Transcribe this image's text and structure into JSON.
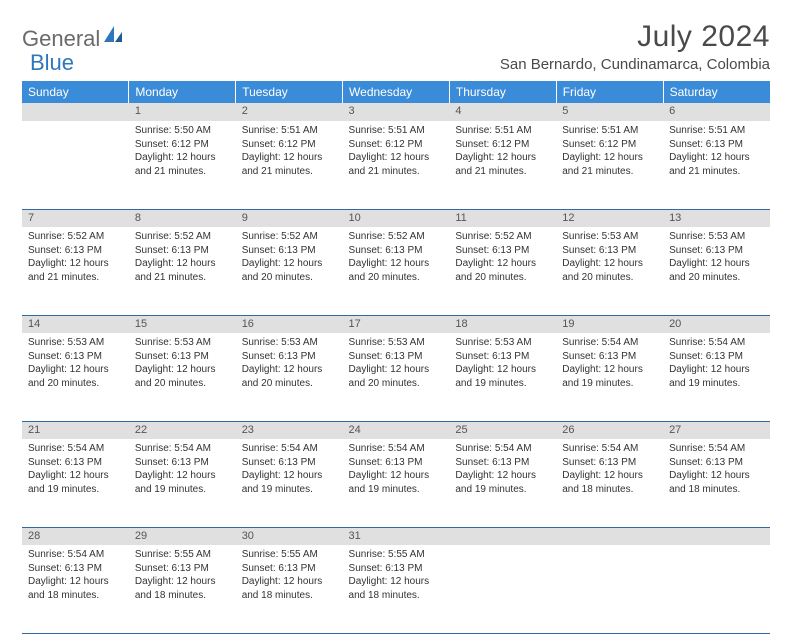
{
  "logo": {
    "general": "General",
    "blue": "Blue"
  },
  "title": "July 2024",
  "location": "San Bernardo, Cundinamarca, Colombia",
  "colors": {
    "header_bg": "#3a8bd8",
    "header_text": "#ffffff",
    "daynum_bg": "#e0e0e0",
    "border": "#2f6aa5",
    "text": "#333333",
    "logo_gray": "#6a6a6a",
    "logo_blue": "#2f77bc"
  },
  "day_headers": [
    "Sunday",
    "Monday",
    "Tuesday",
    "Wednesday",
    "Thursday",
    "Friday",
    "Saturday"
  ],
  "weeks": [
    [
      {
        "num": "",
        "sunrise": "",
        "sunset": "",
        "daylight": ""
      },
      {
        "num": "1",
        "sunrise": "Sunrise: 5:50 AM",
        "sunset": "Sunset: 6:12 PM",
        "daylight": "Daylight: 12 hours and 21 minutes."
      },
      {
        "num": "2",
        "sunrise": "Sunrise: 5:51 AM",
        "sunset": "Sunset: 6:12 PM",
        "daylight": "Daylight: 12 hours and 21 minutes."
      },
      {
        "num": "3",
        "sunrise": "Sunrise: 5:51 AM",
        "sunset": "Sunset: 6:12 PM",
        "daylight": "Daylight: 12 hours and 21 minutes."
      },
      {
        "num": "4",
        "sunrise": "Sunrise: 5:51 AM",
        "sunset": "Sunset: 6:12 PM",
        "daylight": "Daylight: 12 hours and 21 minutes."
      },
      {
        "num": "5",
        "sunrise": "Sunrise: 5:51 AM",
        "sunset": "Sunset: 6:12 PM",
        "daylight": "Daylight: 12 hours and 21 minutes."
      },
      {
        "num": "6",
        "sunrise": "Sunrise: 5:51 AM",
        "sunset": "Sunset: 6:13 PM",
        "daylight": "Daylight: 12 hours and 21 minutes."
      }
    ],
    [
      {
        "num": "7",
        "sunrise": "Sunrise: 5:52 AM",
        "sunset": "Sunset: 6:13 PM",
        "daylight": "Daylight: 12 hours and 21 minutes."
      },
      {
        "num": "8",
        "sunrise": "Sunrise: 5:52 AM",
        "sunset": "Sunset: 6:13 PM",
        "daylight": "Daylight: 12 hours and 21 minutes."
      },
      {
        "num": "9",
        "sunrise": "Sunrise: 5:52 AM",
        "sunset": "Sunset: 6:13 PM",
        "daylight": "Daylight: 12 hours and 20 minutes."
      },
      {
        "num": "10",
        "sunrise": "Sunrise: 5:52 AM",
        "sunset": "Sunset: 6:13 PM",
        "daylight": "Daylight: 12 hours and 20 minutes."
      },
      {
        "num": "11",
        "sunrise": "Sunrise: 5:52 AM",
        "sunset": "Sunset: 6:13 PM",
        "daylight": "Daylight: 12 hours and 20 minutes."
      },
      {
        "num": "12",
        "sunrise": "Sunrise: 5:53 AM",
        "sunset": "Sunset: 6:13 PM",
        "daylight": "Daylight: 12 hours and 20 minutes."
      },
      {
        "num": "13",
        "sunrise": "Sunrise: 5:53 AM",
        "sunset": "Sunset: 6:13 PM",
        "daylight": "Daylight: 12 hours and 20 minutes."
      }
    ],
    [
      {
        "num": "14",
        "sunrise": "Sunrise: 5:53 AM",
        "sunset": "Sunset: 6:13 PM",
        "daylight": "Daylight: 12 hours and 20 minutes."
      },
      {
        "num": "15",
        "sunrise": "Sunrise: 5:53 AM",
        "sunset": "Sunset: 6:13 PM",
        "daylight": "Daylight: 12 hours and 20 minutes."
      },
      {
        "num": "16",
        "sunrise": "Sunrise: 5:53 AM",
        "sunset": "Sunset: 6:13 PM",
        "daylight": "Daylight: 12 hours and 20 minutes."
      },
      {
        "num": "17",
        "sunrise": "Sunrise: 5:53 AM",
        "sunset": "Sunset: 6:13 PM",
        "daylight": "Daylight: 12 hours and 20 minutes."
      },
      {
        "num": "18",
        "sunrise": "Sunrise: 5:53 AM",
        "sunset": "Sunset: 6:13 PM",
        "daylight": "Daylight: 12 hours and 19 minutes."
      },
      {
        "num": "19",
        "sunrise": "Sunrise: 5:54 AM",
        "sunset": "Sunset: 6:13 PM",
        "daylight": "Daylight: 12 hours and 19 minutes."
      },
      {
        "num": "20",
        "sunrise": "Sunrise: 5:54 AM",
        "sunset": "Sunset: 6:13 PM",
        "daylight": "Daylight: 12 hours and 19 minutes."
      }
    ],
    [
      {
        "num": "21",
        "sunrise": "Sunrise: 5:54 AM",
        "sunset": "Sunset: 6:13 PM",
        "daylight": "Daylight: 12 hours and 19 minutes."
      },
      {
        "num": "22",
        "sunrise": "Sunrise: 5:54 AM",
        "sunset": "Sunset: 6:13 PM",
        "daylight": "Daylight: 12 hours and 19 minutes."
      },
      {
        "num": "23",
        "sunrise": "Sunrise: 5:54 AM",
        "sunset": "Sunset: 6:13 PM",
        "daylight": "Daylight: 12 hours and 19 minutes."
      },
      {
        "num": "24",
        "sunrise": "Sunrise: 5:54 AM",
        "sunset": "Sunset: 6:13 PM",
        "daylight": "Daylight: 12 hours and 19 minutes."
      },
      {
        "num": "25",
        "sunrise": "Sunrise: 5:54 AM",
        "sunset": "Sunset: 6:13 PM",
        "daylight": "Daylight: 12 hours and 19 minutes."
      },
      {
        "num": "26",
        "sunrise": "Sunrise: 5:54 AM",
        "sunset": "Sunset: 6:13 PM",
        "daylight": "Daylight: 12 hours and 18 minutes."
      },
      {
        "num": "27",
        "sunrise": "Sunrise: 5:54 AM",
        "sunset": "Sunset: 6:13 PM",
        "daylight": "Daylight: 12 hours and 18 minutes."
      }
    ],
    [
      {
        "num": "28",
        "sunrise": "Sunrise: 5:54 AM",
        "sunset": "Sunset: 6:13 PM",
        "daylight": "Daylight: 12 hours and 18 minutes."
      },
      {
        "num": "29",
        "sunrise": "Sunrise: 5:55 AM",
        "sunset": "Sunset: 6:13 PM",
        "daylight": "Daylight: 12 hours and 18 minutes."
      },
      {
        "num": "30",
        "sunrise": "Sunrise: 5:55 AM",
        "sunset": "Sunset: 6:13 PM",
        "daylight": "Daylight: 12 hours and 18 minutes."
      },
      {
        "num": "31",
        "sunrise": "Sunrise: 5:55 AM",
        "sunset": "Sunset: 6:13 PM",
        "daylight": "Daylight: 12 hours and 18 minutes."
      },
      {
        "num": "",
        "sunrise": "",
        "sunset": "",
        "daylight": ""
      },
      {
        "num": "",
        "sunrise": "",
        "sunset": "",
        "daylight": ""
      },
      {
        "num": "",
        "sunrise": "",
        "sunset": "",
        "daylight": ""
      }
    ]
  ]
}
